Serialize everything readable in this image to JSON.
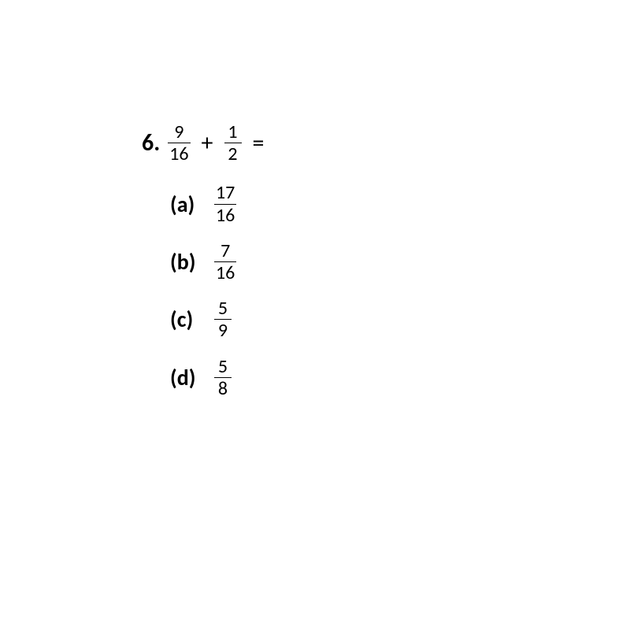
{
  "question": {
    "number": "6.",
    "frac1": {
      "num": "9",
      "den": "16"
    },
    "operator": "+",
    "frac2": {
      "num": "1",
      "den": "2"
    },
    "equals": "="
  },
  "options": [
    {
      "label": "(a)",
      "num": "17",
      "den": "16"
    },
    {
      "label": "(b)",
      "num": "7",
      "den": "16"
    },
    {
      "label": "(c)",
      "num": "5",
      "den": "9"
    },
    {
      "label": "(d)",
      "num": "5",
      "den": "8"
    }
  ],
  "colors": {
    "text": "#000000",
    "background": "#ffffff"
  },
  "typography": {
    "base_fontsize_pt": 22,
    "label_bold": true
  }
}
